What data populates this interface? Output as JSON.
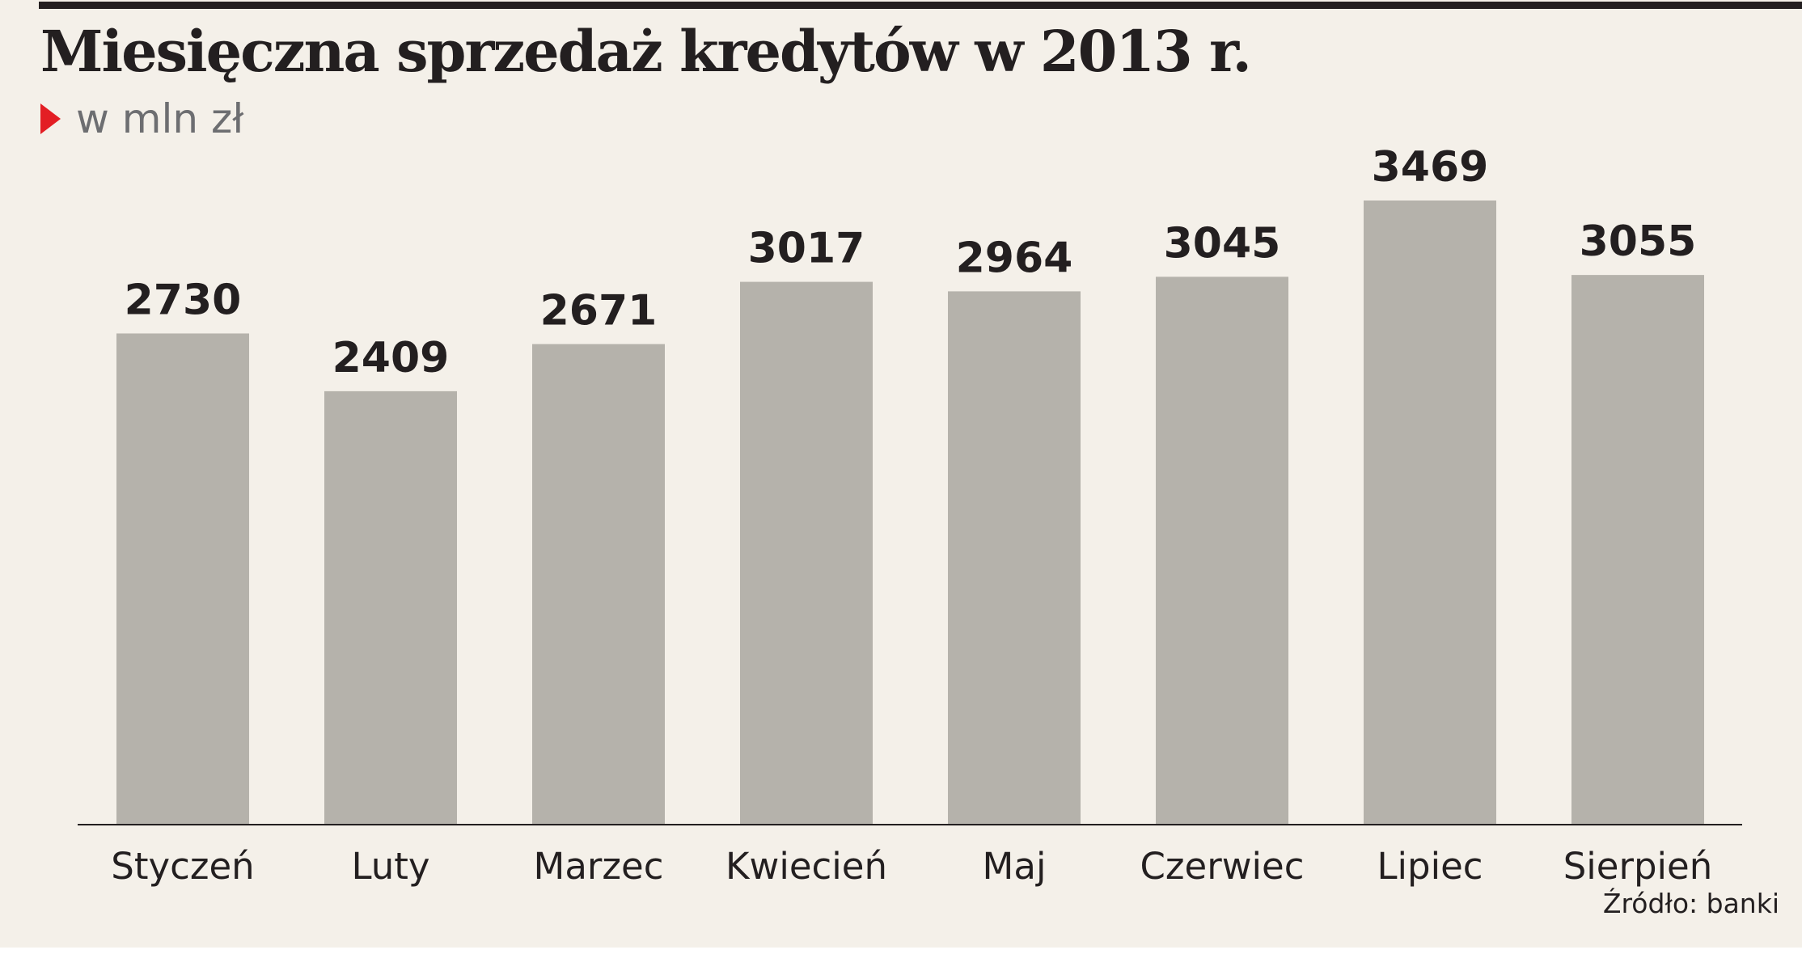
{
  "chart_data": {
    "type": "bar",
    "title": "Miesięczna sprzedaż kredytów w 2013 r.",
    "subtitle": "w mln zł",
    "categories": [
      "Styczeń",
      "Luty",
      "Marzec",
      "Kwiecień",
      "Maj",
      "Czerwiec",
      "Lipiec",
      "Sierpień"
    ],
    "values": [
      2730,
      2409,
      2671,
      3017,
      2964,
      3045,
      3469,
      3055
    ],
    "ylim": [
      0,
      3469
    ],
    "grid": false,
    "legend": "none",
    "bar_color": "#b5b2ab",
    "source": "Źródło: banki"
  },
  "colors": {
    "background": "#f4f0e9",
    "accent": "#e31e24",
    "text": "#231f20",
    "subtitle_text": "#6d6e71"
  }
}
